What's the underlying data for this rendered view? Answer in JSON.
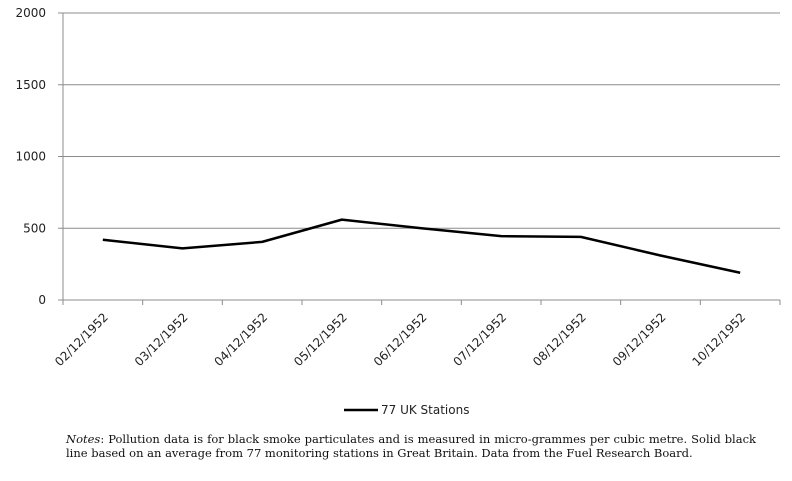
{
  "chart_data": {
    "type": "line",
    "x": [
      "02/12/1952",
      "03/12/1952",
      "04/12/1952",
      "05/12/1952",
      "06/12/1952",
      "07/12/1952",
      "08/12/1952",
      "09/12/1952",
      "10/12/1952"
    ],
    "series": [
      {
        "name": "77 UK Stations",
        "values": [
          420,
          360,
          405,
          560,
          500,
          445,
          440,
          310,
          190
        ],
        "color": "#000000"
      }
    ],
    "yticks": [
      0,
      500,
      1000,
      1500,
      2000
    ],
    "ylim": [
      0,
      2000
    ],
    "grid": true,
    "legend_position": "bottom"
  },
  "notes": {
    "lead": "Notes",
    "text": ": Pollution data is for black smoke particulates and is measured in micro-grammes per cubic metre. Solid black line based on an average from 77 monitoring stations in Great Britain. Data from the Fuel Research Board."
  }
}
